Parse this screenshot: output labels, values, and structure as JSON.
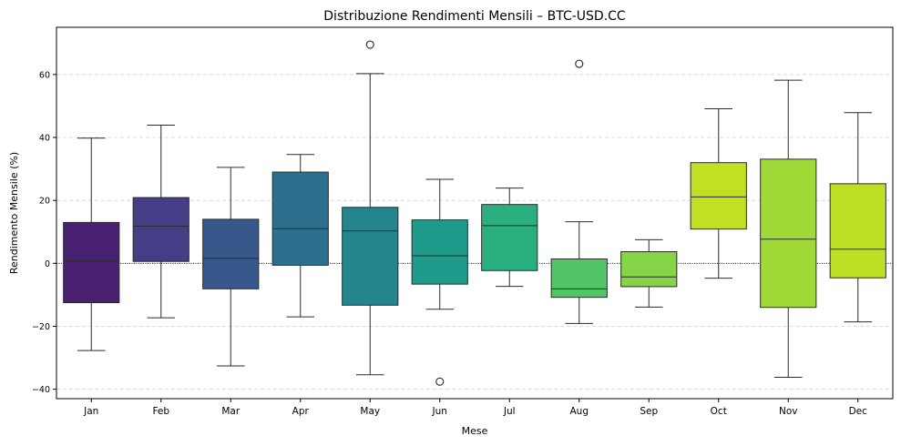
{
  "chart_data": {
    "type": "box",
    "title": "Distribuzione Rendimenti Mensili – BTC-USD.CC",
    "xlabel": "Mese",
    "ylabel": "Rendimento Mensile (%)",
    "ylim": [
      -43,
      75
    ],
    "yticks": [
      -40,
      -20,
      0,
      20,
      40,
      60
    ],
    "grid": "horizontal-dashed",
    "reference_line": 0,
    "categories": [
      "Jan",
      "Feb",
      "Mar",
      "Apr",
      "May",
      "Jun",
      "Jul",
      "Aug",
      "Sep",
      "Oct",
      "Nov",
      "Dec"
    ],
    "boxes": [
      {
        "min": -27.7,
        "q1": -12.5,
        "median": 0.8,
        "q3": 13.0,
        "max": 39.8,
        "outliers": [],
        "color": "#482173"
      },
      {
        "min": -17.3,
        "q1": 0.6,
        "median": 11.8,
        "q3": 20.9,
        "max": 43.9,
        "outliers": [],
        "color": "#433e85"
      },
      {
        "min": -32.6,
        "q1": -8.1,
        "median": 1.6,
        "q3": 14.0,
        "max": 30.5,
        "outliers": [],
        "color": "#38588c"
      },
      {
        "min": -17.0,
        "q1": -0.6,
        "median": 11.0,
        "q3": 29.0,
        "max": 34.6,
        "outliers": [],
        "color": "#2d708e"
      },
      {
        "min": -35.4,
        "q1": -13.3,
        "median": 10.3,
        "q3": 17.8,
        "max": 60.3,
        "outliers": [
          69.5
        ],
        "color": "#25858e"
      },
      {
        "min": -14.6,
        "q1": -6.6,
        "median": 2.4,
        "q3": 13.8,
        "max": 26.7,
        "outliers": [
          -37.6
        ],
        "color": "#1e9b8a"
      },
      {
        "min": -7.3,
        "q1": -2.3,
        "median": 12.0,
        "q3": 18.7,
        "max": 23.9,
        "outliers": [],
        "color": "#2ab07f"
      },
      {
        "min": -19.1,
        "q1": -10.8,
        "median": -8.1,
        "q3": 1.4,
        "max": 13.2,
        "outliers": [
          63.4
        ],
        "color": "#52c569"
      },
      {
        "min": -13.9,
        "q1": -7.4,
        "median": -4.3,
        "q3": 3.7,
        "max": 7.5,
        "outliers": [],
        "color": "#86d549"
      },
      {
        "min": -4.7,
        "q1": 10.9,
        "median": 21.1,
        "q3": 32.0,
        "max": 49.1,
        "outliers": [],
        "color": "#c2df23"
      },
      {
        "min": -36.2,
        "q1": -14.0,
        "median": 7.7,
        "q3": 33.1,
        "max": 58.2,
        "outliers": [],
        "color": "#a0da39"
      },
      {
        "min": -18.6,
        "q1": -4.6,
        "median": 4.5,
        "q3": 25.3,
        "max": 47.9,
        "outliers": [],
        "color": "#bddf26"
      }
    ]
  }
}
